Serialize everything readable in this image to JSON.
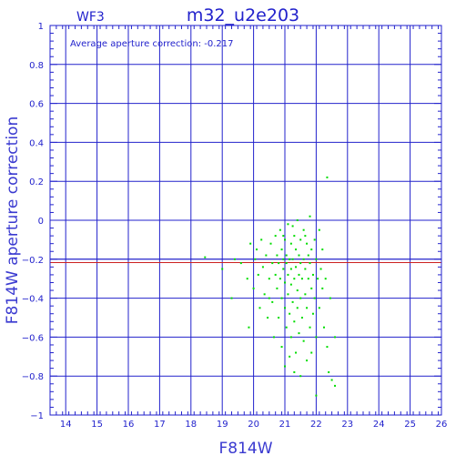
{
  "chart_data": {
    "type": "scatter",
    "title": "m32_u2e203",
    "subtitle": "WF3",
    "annotation": "Average aperture correction: -0.217",
    "xlabel": "F814W",
    "ylabel": "F814W aperture correction",
    "xlim": [
      13.5,
      26
    ],
    "ylim": [
      -1,
      1
    ],
    "x_ticks": [
      14,
      15,
      16,
      17,
      18,
      19,
      20,
      21,
      22,
      23,
      24,
      25,
      26
    ],
    "y_ticks": [
      -1,
      -0.8,
      -0.6,
      -0.4,
      -0.2,
      0,
      0.2,
      0.4,
      0.6,
      0.8,
      1
    ],
    "x_tick_labels": [
      "14",
      "15",
      "16",
      "17",
      "18",
      "19",
      "20",
      "21",
      "22",
      "23",
      "24",
      "25",
      "26"
    ],
    "y_tick_labels": [
      "−1",
      "−0.8",
      "−0.6",
      "−0.4",
      "−0.2",
      "0",
      "0.2",
      "0.4",
      "0.6",
      "0.8",
      "1"
    ],
    "grid": true,
    "reference_lines": [
      {
        "y": -0.2,
        "color": "#2222cc"
      },
      {
        "y": -0.217,
        "color": "#cc2222"
      }
    ],
    "colors": {
      "axes": "#2222cc",
      "points": "#00dd00",
      "mean_line": "#cc2222"
    },
    "series": [
      {
        "values": [
          [
            18.45,
            -0.19
          ],
          [
            19.0,
            -0.25
          ],
          [
            19.3,
            -0.4
          ],
          [
            19.4,
            -0.2
          ],
          [
            19.6,
            -0.22
          ],
          [
            19.8,
            -0.3
          ],
          [
            19.85,
            -0.55
          ],
          [
            19.9,
            -0.12
          ],
          [
            20.0,
            -0.35
          ],
          [
            20.05,
            -0.2
          ],
          [
            20.1,
            -0.15
          ],
          [
            20.15,
            -0.28
          ],
          [
            20.2,
            -0.45
          ],
          [
            20.25,
            -0.1
          ],
          [
            20.3,
            -0.24
          ],
          [
            20.35,
            -0.38
          ],
          [
            20.4,
            -0.18
          ],
          [
            20.45,
            -0.5
          ],
          [
            20.5,
            -0.3
          ],
          [
            20.55,
            -0.12
          ],
          [
            20.6,
            -0.22
          ],
          [
            20.6,
            -0.42
          ],
          [
            20.65,
            -0.6
          ],
          [
            20.7,
            -0.08
          ],
          [
            20.7,
            -0.28
          ],
          [
            20.75,
            -0.18
          ],
          [
            20.75,
            -0.35
          ],
          [
            20.8,
            -0.5
          ],
          [
            20.8,
            -0.22
          ],
          [
            20.85,
            -0.05
          ],
          [
            20.85,
            -0.3
          ],
          [
            20.9,
            -0.15
          ],
          [
            20.9,
            -0.4
          ],
          [
            20.9,
            -0.65
          ],
          [
            20.95,
            -0.25
          ],
          [
            20.95,
            -0.2
          ],
          [
            21.0,
            -0.1
          ],
          [
            21.0,
            -0.32
          ],
          [
            21.0,
            -0.45
          ],
          [
            21.0,
            -0.75
          ],
          [
            21.05,
            -0.22
          ],
          [
            21.05,
            -0.18
          ],
          [
            21.05,
            -0.55
          ],
          [
            21.1,
            -0.02
          ],
          [
            21.1,
            -0.28
          ],
          [
            21.1,
            -0.38
          ],
          [
            21.15,
            -0.2
          ],
          [
            21.15,
            -0.48
          ],
          [
            21.15,
            -0.7
          ],
          [
            21.2,
            -0.12
          ],
          [
            21.2,
            -0.25
          ],
          [
            21.2,
            -0.33
          ],
          [
            21.2,
            -0.6
          ],
          [
            21.25,
            -0.2
          ],
          [
            21.25,
            -0.42
          ],
          [
            21.3,
            -0.08
          ],
          [
            21.3,
            -0.3
          ],
          [
            21.3,
            -0.52
          ],
          [
            21.3,
            -0.78
          ],
          [
            21.35,
            -0.15
          ],
          [
            21.35,
            -0.24
          ],
          [
            21.35,
            -0.68
          ],
          [
            21.4,
            0.0
          ],
          [
            21.4,
            -0.36
          ],
          [
            21.4,
            -0.45
          ],
          [
            21.45,
            -0.18
          ],
          [
            21.45,
            -0.28
          ],
          [
            21.45,
            -0.58
          ],
          [
            21.5,
            -0.1
          ],
          [
            21.5,
            -0.22
          ],
          [
            21.5,
            -0.4
          ],
          [
            21.5,
            -0.8
          ],
          [
            21.55,
            -0.3
          ],
          [
            21.55,
            -0.5
          ],
          [
            21.6,
            -0.05
          ],
          [
            21.6,
            -0.2
          ],
          [
            21.6,
            -0.62
          ],
          [
            21.65,
            -0.25
          ],
          [
            21.65,
            -0.38
          ],
          [
            21.7,
            -0.12
          ],
          [
            21.7,
            -0.45
          ],
          [
            21.7,
            -0.72
          ],
          [
            21.75,
            -0.18
          ],
          [
            21.75,
            -0.3
          ],
          [
            21.8,
            0.02
          ],
          [
            21.8,
            -0.22
          ],
          [
            21.8,
            -0.55
          ],
          [
            21.85,
            -0.35
          ],
          [
            21.85,
            -0.15
          ],
          [
            21.9,
            -0.28
          ],
          [
            21.9,
            -0.48
          ],
          [
            21.95,
            -0.1
          ],
          [
            21.95,
            -0.4
          ],
          [
            22.0,
            -0.2
          ],
          [
            22.0,
            -0.6
          ],
          [
            22.0,
            -0.9
          ],
          [
            22.05,
            -0.3
          ],
          [
            22.1,
            -0.05
          ],
          [
            22.1,
            -0.45
          ],
          [
            22.15,
            -0.25
          ],
          [
            22.2,
            -0.15
          ],
          [
            22.2,
            -0.35
          ],
          [
            22.25,
            -0.55
          ],
          [
            22.3,
            -0.3
          ],
          [
            22.35,
            0.22
          ],
          [
            22.35,
            -0.65
          ],
          [
            22.4,
            -0.78
          ],
          [
            22.45,
            -0.4
          ],
          [
            22.5,
            -0.82
          ],
          [
            22.6,
            -0.6
          ],
          [
            22.6,
            -0.85
          ],
          [
            20.95,
            -0.08
          ],
          [
            21.25,
            -0.03
          ],
          [
            21.65,
            -0.08
          ],
          [
            20.5,
            -0.4
          ],
          [
            21.85,
            -0.68
          ]
        ]
      }
    ]
  }
}
